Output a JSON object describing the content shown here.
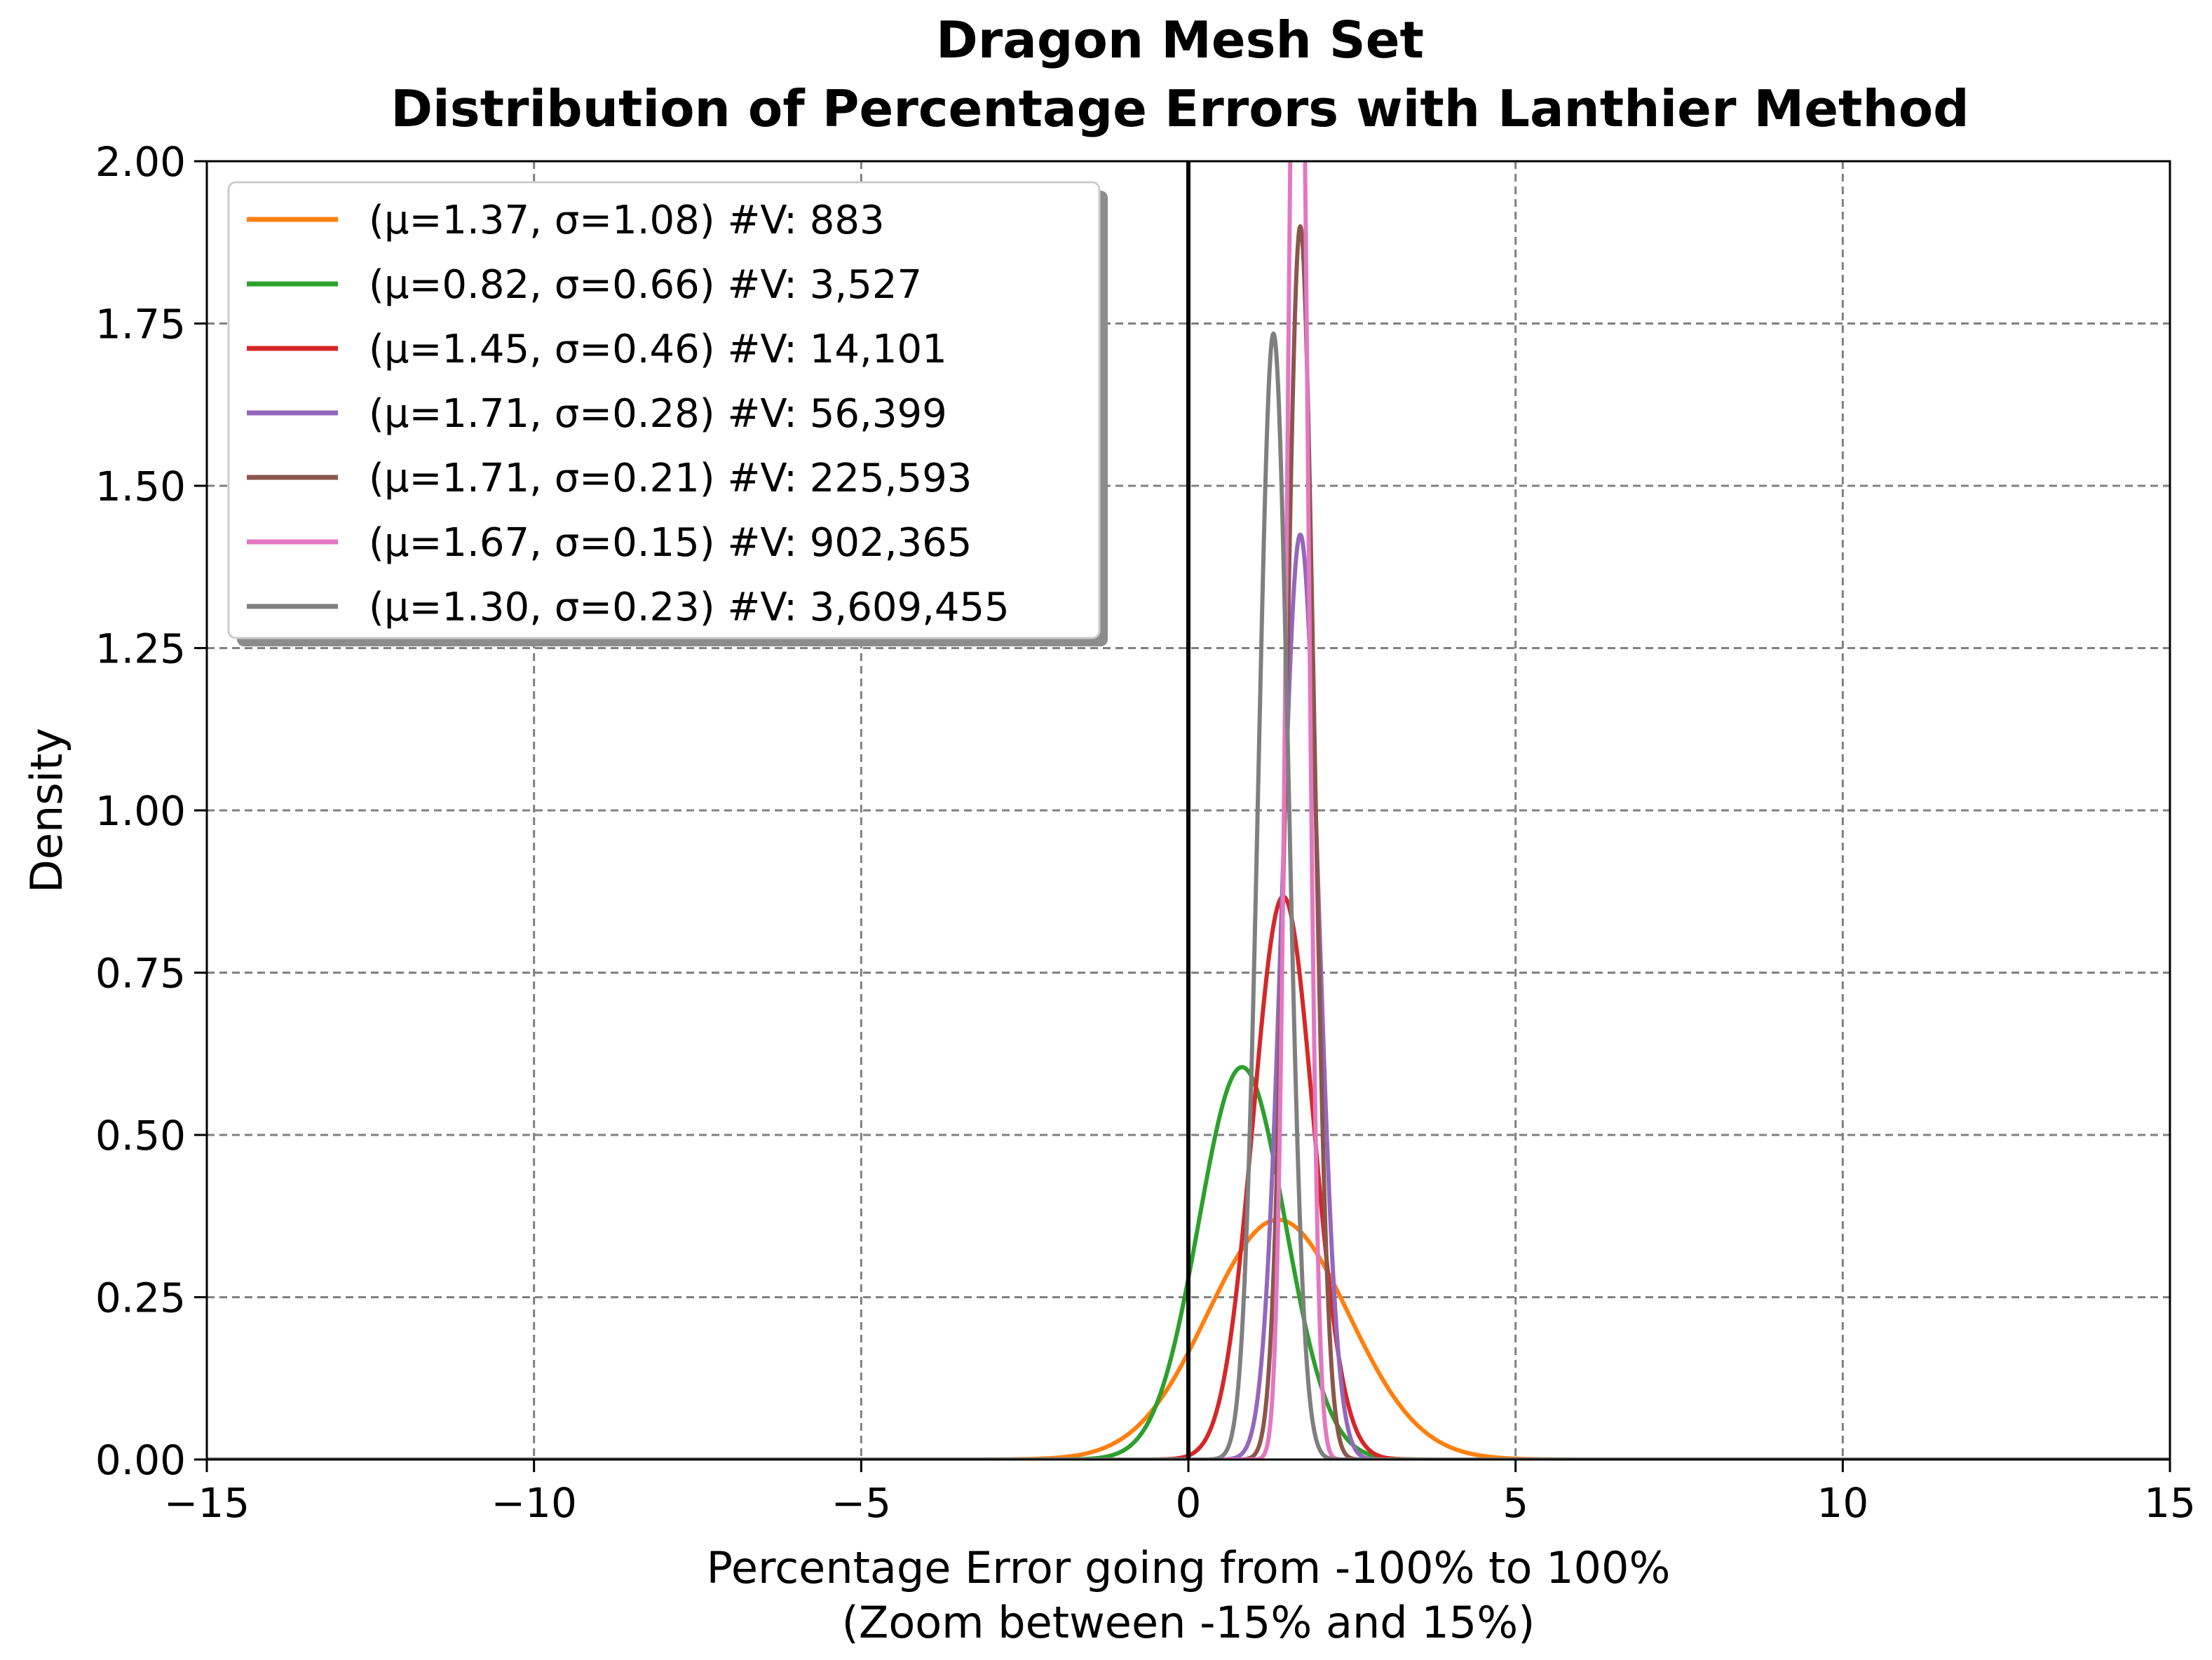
{
  "chart_data": {
    "type": "line",
    "title": [
      "Dragon Mesh Set",
      "Distribution of Percentage Errors with Lanthier Method"
    ],
    "xlabel": [
      "Percentage Error going from -100% to 100%",
      "(Zoom between -15% and 15%)"
    ],
    "ylabel": "Density",
    "xlim": [
      -15,
      15
    ],
    "ylim": [
      0,
      2.0
    ],
    "x_ticks": [
      -15,
      -10,
      -5,
      0,
      5,
      10,
      15
    ],
    "x_tick_labels": [
      "−15",
      "−10",
      "−5",
      "0",
      "5",
      "10",
      "15"
    ],
    "y_ticks": [
      0,
      0.25,
      0.5,
      0.75,
      1.0,
      1.25,
      1.5,
      1.75,
      2.0
    ],
    "y_tick_labels": [
      "0.00",
      "0.25",
      "0.50",
      "0.75",
      "1.00",
      "1.25",
      "1.50",
      "1.75",
      "2.00"
    ],
    "grid": true,
    "grid_style": "dashed",
    "vertical_reference_line_x": 0,
    "legend_position": "top-left",
    "series": [
      {
        "name": "(μ=1.37, σ=1.08) #V: 883",
        "color": "#ff7f0e",
        "mu": 1.37,
        "sigma": 1.08
      },
      {
        "name": "(μ=0.82, σ=0.66) #V: 3,527",
        "color": "#2ca02c",
        "mu": 0.82,
        "sigma": 0.66
      },
      {
        "name": "(μ=1.45, σ=0.46) #V: 14,101",
        "color": "#d62728",
        "mu": 1.45,
        "sigma": 0.46
      },
      {
        "name": "(μ=1.71, σ=0.28) #V: 56,399",
        "color": "#9467bd",
        "mu": 1.71,
        "sigma": 0.28
      },
      {
        "name": "(μ=1.71, σ=0.21) #V: 225,593",
        "color": "#8c564b",
        "mu": 1.71,
        "sigma": 0.21
      },
      {
        "name": "(μ=1.67, σ=0.15) #V: 902,365",
        "color": "#e377c2",
        "mu": 1.67,
        "sigma": 0.15
      },
      {
        "name": "(μ=1.30, σ=0.23) #V: 3,609,455",
        "color": "#7f7f7f",
        "mu": 1.3,
        "sigma": 0.23
      }
    ]
  }
}
